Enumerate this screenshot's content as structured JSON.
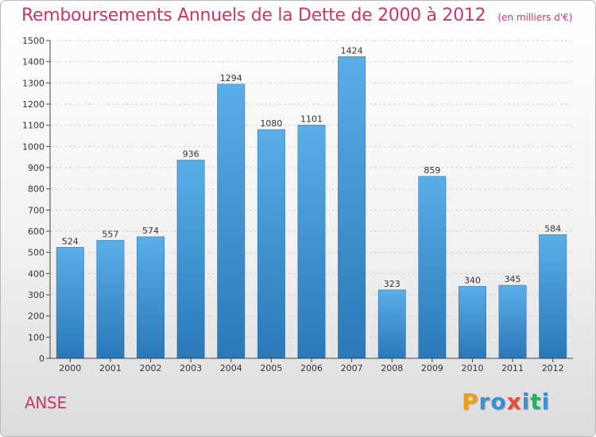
{
  "header": {
    "title": "Remboursements Annuels de la Dette de 2000 à 2012",
    "unit": "(en milliers d'€)"
  },
  "footer": {
    "commune": "ANSE",
    "logo": {
      "letters": [
        "P",
        "r",
        "o",
        "x",
        "i",
        "t",
        "i"
      ],
      "colors": [
        "#f39c12",
        "#3b8fd6",
        "#3b8fd6",
        "#e74c3c",
        "#3b8fd6",
        "#27ae60",
        "#3b8fd6"
      ]
    }
  },
  "chart_data": {
    "type": "bar",
    "categories": [
      "2000",
      "2001",
      "2002",
      "2003",
      "2004",
      "2005",
      "2006",
      "2007",
      "2008",
      "2009",
      "2010",
      "2011",
      "2012"
    ],
    "values": [
      524,
      557,
      574,
      936,
      1294,
      1080,
      1101,
      1424,
      323,
      859,
      340,
      345,
      584
    ],
    "data_labels": [
      "524",
      "557",
      "574",
      "936",
      "1294",
      "1080",
      "1101",
      "1424",
      "323",
      "859",
      "340",
      "345",
      "584"
    ],
    "title": "Remboursements Annuels de la Dette de 2000 à 2012",
    "unit": "(en milliers d'€)",
    "ylim": [
      0,
      1500
    ],
    "yticks": [
      0,
      100,
      200,
      300,
      400,
      500,
      600,
      700,
      800,
      900,
      1000,
      1100,
      1200,
      1300,
      1400,
      1500
    ],
    "grid": true,
    "colors": {
      "bar_top": "#5aaee8",
      "bar_bottom": "#2a78b8",
      "grid": "#d0d0d0",
      "axis": "#444444",
      "title": "#c8366c"
    }
  }
}
